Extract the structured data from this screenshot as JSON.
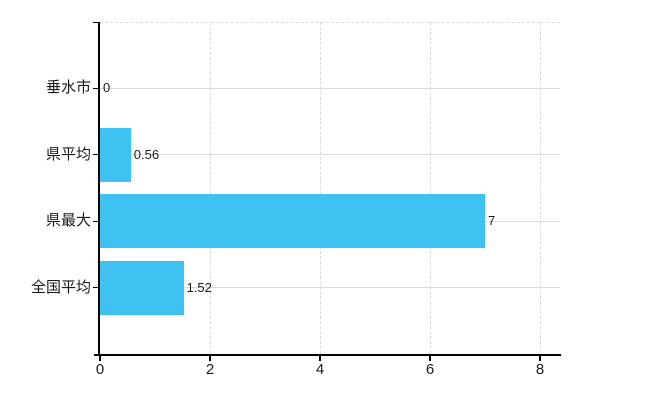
{
  "chart_data": {
    "type": "bar",
    "orientation": "horizontal",
    "title": "",
    "xlabel": "",
    "ylabel": "",
    "categories": [
      "垂水市",
      "県平均",
      "県最大",
      "全国平均"
    ],
    "values": [
      0,
      0.56,
      7,
      1.52
    ],
    "value_labels": [
      "0",
      "0.56",
      "7",
      "1.52"
    ],
    "xticks": [
      0,
      2,
      4,
      6,
      8
    ],
    "xtick_labels": [
      "0",
      "2",
      "4",
      "6",
      "8"
    ],
    "xlim": [
      0,
      8.4
    ],
    "grid": true,
    "legend": "none",
    "colors": {
      "bar": "#3fc2f2",
      "axis": "#000000",
      "gridline_h": "#d7ded7",
      "gridline_v": "#d9d9d9",
      "text": "#1a1a1a"
    }
  }
}
